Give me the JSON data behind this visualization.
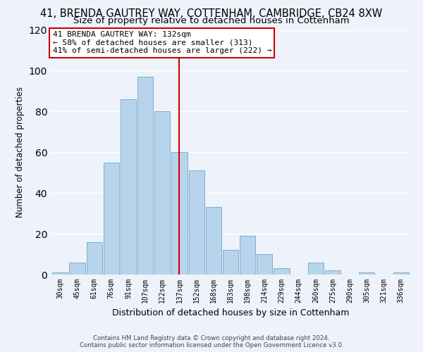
{
  "title": "41, BRENDA GAUTREY WAY, COTTENHAM, CAMBRIDGE, CB24 8XW",
  "subtitle": "Size of property relative to detached houses in Cottenham",
  "xlabel": "Distribution of detached houses by size in Cottenham",
  "ylabel": "Number of detached properties",
  "bar_labels": [
    "30sqm",
    "45sqm",
    "61sqm",
    "76sqm",
    "91sqm",
    "107sqm",
    "122sqm",
    "137sqm",
    "152sqm",
    "168sqm",
    "183sqm",
    "198sqm",
    "214sqm",
    "229sqm",
    "244sqm",
    "260sqm",
    "275sqm",
    "290sqm",
    "305sqm",
    "321sqm",
    "336sqm"
  ],
  "bar_heights": [
    1,
    6,
    16,
    55,
    86,
    97,
    80,
    60,
    51,
    33,
    12,
    19,
    10,
    3,
    0,
    6,
    2,
    0,
    1,
    0,
    1
  ],
  "bar_color": "#b8d4ec",
  "bar_edge_color": "#7aafce",
  "vline_x_index": 7,
  "vline_color": "#cc0000",
  "ylim": [
    0,
    120
  ],
  "yticks": [
    0,
    20,
    40,
    60,
    80,
    100,
    120
  ],
  "annotation_title": "41 BRENDA GAUTREY WAY: 132sqm",
  "annotation_line1": "← 58% of detached houses are smaller (313)",
  "annotation_line2": "41% of semi-detached houses are larger (222) →",
  "annotation_box_color": "#ffffff",
  "annotation_box_edge": "#cc0000",
  "footer_line1": "Contains HM Land Registry data © Crown copyright and database right 2024.",
  "footer_line2": "Contains public sector information licensed under the Open Government Licence v3.0.",
  "background_color": "#eef2fa",
  "grid_color": "#ffffff",
  "title_fontsize": 10.5,
  "subtitle_fontsize": 9.5,
  "ylabel_fontsize": 8.5,
  "xlabel_fontsize": 9,
  "tick_fontsize": 7
}
